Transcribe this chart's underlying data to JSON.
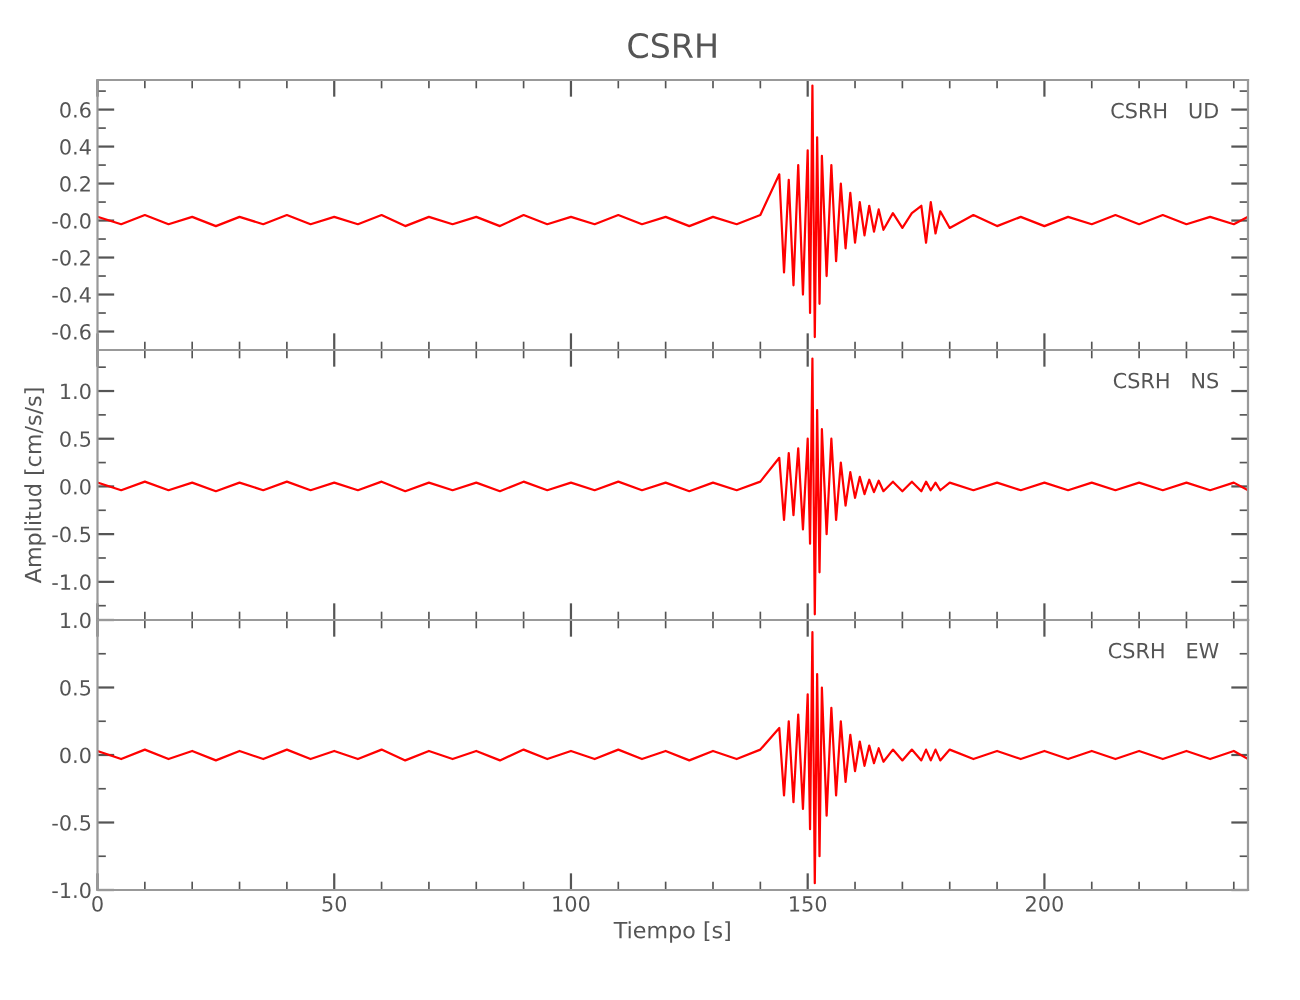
{
  "chart_data": [
    {
      "type": "line",
      "title": "CSRH",
      "annotations": [
        "CSRH   UD"
      ],
      "xlim": [
        0,
        243
      ],
      "xticks": [
        0,
        50,
        100,
        150,
        200
      ],
      "ylim": [
        -0.7,
        0.76
      ],
      "yticks": [
        0.6,
        0.4,
        0.2,
        {
          "value": 0,
          "label": "-0.0"
        },
        {
          "value": -0.2,
          "label": "-0.2"
        },
        {
          "value": -0.4,
          "label": "-0.4"
        },
        {
          "value": -0.6,
          "label": "-0.6"
        }
      ],
      "tick_labels": "y",
      "grid": false,
      "x": [
        0,
        5,
        10,
        15,
        20,
        25,
        30,
        35,
        40,
        45,
        50,
        55,
        60,
        65,
        70,
        75,
        80,
        85,
        90,
        95,
        100,
        105,
        110,
        115,
        120,
        125,
        130,
        135,
        140,
        144,
        145,
        146,
        147,
        148,
        149,
        150,
        150.5,
        151,
        151.5,
        152,
        152.5,
        153,
        154,
        155,
        156,
        157,
        158,
        159,
        160,
        161,
        162,
        163,
        164,
        165,
        166,
        168,
        170,
        172,
        174,
        175,
        176,
        177,
        178,
        180,
        185,
        190,
        195,
        200,
        205,
        210,
        215,
        220,
        225,
        230,
        235,
        240,
        243
      ],
      "series": [
        {
          "color": "#ff0000",
          "values": [
            0.02,
            -0.02,
            0.03,
            -0.02,
            0.02,
            -0.03,
            0.02,
            -0.02,
            0.03,
            -0.02,
            0.02,
            -0.02,
            0.03,
            -0.03,
            0.02,
            -0.02,
            0.02,
            -0.03,
            0.03,
            -0.02,
            0.02,
            -0.02,
            0.03,
            -0.02,
            0.02,
            -0.03,
            0.02,
            -0.02,
            0.03,
            0.25,
            -0.28,
            0.22,
            -0.35,
            0.3,
            -0.4,
            0.38,
            -0.5,
            0.73,
            -0.63,
            0.45,
            -0.45,
            0.35,
            -0.3,
            0.3,
            -0.22,
            0.2,
            -0.15,
            0.15,
            -0.12,
            0.1,
            -0.08,
            0.08,
            -0.06,
            0.06,
            -0.05,
            0.04,
            -0.04,
            0.04,
            0.08,
            -0.12,
            0.1,
            -0.07,
            0.05,
            -0.04,
            0.03,
            -0.03,
            0.02,
            -0.03,
            0.02,
            -0.02,
            0.03,
            -0.02,
            0.03,
            -0.02,
            0.02,
            -0.02,
            0.02
          ]
        }
      ]
    },
    {
      "type": "line",
      "ylabel": "Amplitud [cm/s/s]",
      "annotations": [
        "CSRH   NS"
      ],
      "xlim": [
        0,
        243
      ],
      "xticks": [
        0,
        50,
        100,
        150,
        200
      ],
      "ylim": [
        -1.4,
        1.43
      ],
      "yticks": [
        {
          "value": 1,
          "label": "1.0"
        },
        0.5,
        {
          "value": 0,
          "label": "0.0"
        },
        -0.5,
        {
          "value": -1,
          "label": "-1.0"
        }
      ],
      "tick_labels": "y",
      "grid": false,
      "x": [
        0,
        5,
        10,
        15,
        20,
        25,
        30,
        35,
        40,
        45,
        50,
        55,
        60,
        65,
        70,
        75,
        80,
        85,
        90,
        95,
        100,
        105,
        110,
        115,
        120,
        125,
        130,
        135,
        140,
        144,
        145,
        146,
        147,
        148,
        149,
        150,
        150.5,
        151,
        151.5,
        152,
        152.5,
        153,
        154,
        155,
        156,
        157,
        158,
        159,
        160,
        161,
        162,
        163,
        164,
        165,
        166,
        168,
        170,
        172,
        174,
        175,
        176,
        177,
        178,
        180,
        185,
        190,
        195,
        200,
        205,
        210,
        215,
        220,
        225,
        230,
        235,
        240,
        243
      ],
      "series": [
        {
          "color": "#ff0000",
          "values": [
            0.04,
            -0.04,
            0.05,
            -0.04,
            0.04,
            -0.05,
            0.04,
            -0.04,
            0.05,
            -0.04,
            0.04,
            -0.04,
            0.05,
            -0.05,
            0.04,
            -0.04,
            0.04,
            -0.05,
            0.05,
            -0.04,
            0.04,
            -0.04,
            0.05,
            -0.04,
            0.04,
            -0.05,
            0.04,
            -0.04,
            0.05,
            0.3,
            -0.35,
            0.35,
            -0.3,
            0.4,
            -0.45,
            0.5,
            -0.6,
            1.34,
            -1.34,
            0.8,
            -0.9,
            0.6,
            -0.5,
            0.5,
            -0.35,
            0.25,
            -0.2,
            0.15,
            -0.12,
            0.1,
            -0.08,
            0.07,
            -0.06,
            0.06,
            -0.05,
            0.05,
            -0.05,
            0.05,
            -0.05,
            0.05,
            -0.04,
            0.04,
            -0.04,
            0.04,
            -0.04,
            0.04,
            -0.04,
            0.04,
            -0.04,
            0.04,
            -0.04,
            0.04,
            -0.04,
            0.04,
            -0.04,
            0.04,
            -0.04
          ]
        }
      ]
    },
    {
      "type": "line",
      "xlabel": "Tiempo [s]",
      "annotations": [
        "CSRH   EW"
      ],
      "xlim": [
        0,
        243
      ],
      "xticks": [
        0,
        50,
        100,
        150,
        200
      ],
      "ylim": [
        -1.0,
        1.0
      ],
      "yticks": [
        {
          "value": 1,
          "label": "1.0"
        },
        0.5,
        {
          "value": 0,
          "label": "0.0"
        },
        -0.5,
        {
          "value": -1,
          "label": "-1.0"
        }
      ],
      "grid": false,
      "x": [
        0,
        5,
        10,
        15,
        20,
        25,
        30,
        35,
        40,
        45,
        50,
        55,
        60,
        65,
        70,
        75,
        80,
        85,
        90,
        95,
        100,
        105,
        110,
        115,
        120,
        125,
        130,
        135,
        140,
        144,
        145,
        146,
        147,
        148,
        149,
        150,
        150.5,
        151,
        151.5,
        152,
        152.5,
        153,
        154,
        155,
        156,
        157,
        158,
        159,
        160,
        161,
        162,
        163,
        164,
        165,
        166,
        168,
        170,
        172,
        174,
        175,
        176,
        177,
        178,
        180,
        185,
        190,
        195,
        200,
        205,
        210,
        215,
        220,
        225,
        230,
        235,
        240,
        243
      ],
      "series": [
        {
          "color": "#ff0000",
          "values": [
            0.03,
            -0.03,
            0.04,
            -0.03,
            0.03,
            -0.04,
            0.03,
            -0.03,
            0.04,
            -0.03,
            0.03,
            -0.03,
            0.04,
            -0.04,
            0.03,
            -0.03,
            0.03,
            -0.04,
            0.04,
            -0.03,
            0.03,
            -0.03,
            0.04,
            -0.03,
            0.03,
            -0.04,
            0.03,
            -0.03,
            0.04,
            0.2,
            -0.3,
            0.25,
            -0.35,
            0.3,
            -0.4,
            0.45,
            -0.55,
            0.91,
            -0.95,
            0.6,
            -0.75,
            0.5,
            -0.45,
            0.35,
            -0.3,
            0.25,
            -0.2,
            0.15,
            -0.12,
            0.1,
            -0.08,
            0.07,
            -0.06,
            0.05,
            -0.05,
            0.04,
            -0.04,
            0.04,
            -0.04,
            0.04,
            -0.04,
            0.04,
            -0.04,
            0.04,
            -0.03,
            0.03,
            -0.03,
            0.03,
            -0.03,
            0.03,
            -0.03,
            0.03,
            -0.03,
            0.03,
            -0.03,
            0.03,
            -0.03
          ]
        }
      ]
    }
  ]
}
